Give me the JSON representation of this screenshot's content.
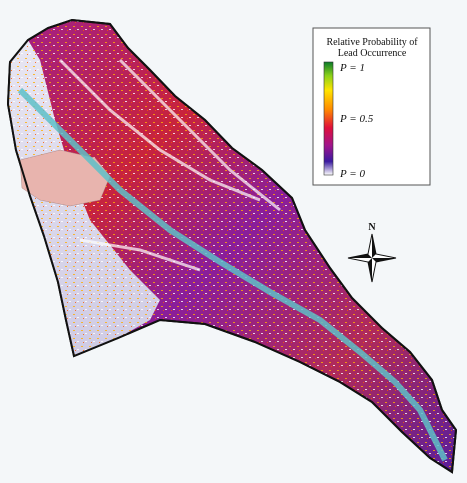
{
  "legend": {
    "title_lines": [
      "Relative Probability of",
      "Lead Occurrence"
    ],
    "labels": [
      "P = 1",
      "P = 0.5",
      "P = 0"
    ]
  },
  "compass": {
    "label": "N"
  }
}
